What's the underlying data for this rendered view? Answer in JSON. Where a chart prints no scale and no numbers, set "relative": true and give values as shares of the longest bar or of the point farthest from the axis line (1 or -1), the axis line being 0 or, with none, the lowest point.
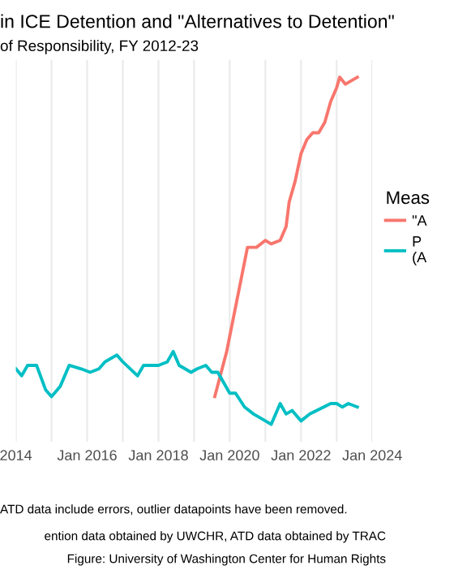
{
  "chart_data": {
    "type": "line",
    "title": "in ICE Detention and \"Alternatives to Detention\"",
    "subtitle": "of Responsibility, FY 2012-23",
    "legend_title": "Meas",
    "relative": true,
    "tick_labels": "x",
    "grid": "x",
    "legend": "right",
    "line_style": "solid",
    "marker": "none",
    "xlim": [
      "2014-01",
      "2024-01"
    ],
    "xticks": [
      {
        "value": "2014-01",
        "label": "2014"
      },
      {
        "value": "2015-01",
        "label": null
      },
      {
        "value": "2016-01",
        "label": "Jan 2016"
      },
      {
        "value": "2017-01",
        "label": null
      },
      {
        "value": "2018-01",
        "label": "Jan 2018"
      },
      {
        "value": "2019-01",
        "label": null
      },
      {
        "value": "2020-01",
        "label": "Jan 2020"
      },
      {
        "value": "2021-01",
        "label": null
      },
      {
        "value": "2022-01",
        "label": "Jan 2022"
      },
      {
        "value": "2023-01",
        "label": null
      },
      {
        "value": "2024-01",
        "label": "Jan 2024"
      }
    ],
    "series": [
      {
        "name": "\"A",
        "color": "#f8766d",
        "x": [
          "2019-08",
          "2019-12",
          "2020-07",
          "2020-10",
          "2021-01",
          "2021-03",
          "2021-06",
          "2021-08",
          "2021-09",
          "2021-11",
          "2022-01",
          "2022-03",
          "2022-05",
          "2022-07",
          "2022-09",
          "2022-11",
          "2023-01",
          "2023-02",
          "2023-04",
          "2023-06",
          "2023-08"
        ],
        "values": [
          0.08,
          0.21,
          0.51,
          0.51,
          0.53,
          0.52,
          0.53,
          0.57,
          0.64,
          0.7,
          0.78,
          0.82,
          0.84,
          0.84,
          0.87,
          0.93,
          0.97,
          1.0,
          0.98,
          0.99,
          1.0
        ]
      },
      {
        "name": "P\n(A",
        "color": "#00bfc4",
        "x": [
          "2014-01",
          "2014-03",
          "2014-05",
          "2014-08",
          "2014-11",
          "2015-01",
          "2015-04",
          "2015-07",
          "2015-11",
          "2016-02",
          "2016-05",
          "2016-07",
          "2016-11",
          "2017-01",
          "2017-06",
          "2017-08",
          "2018-01",
          "2018-04",
          "2018-06",
          "2018-08",
          "2018-12",
          "2019-02",
          "2019-05",
          "2019-07",
          "2019-09",
          "2020-01",
          "2020-03",
          "2020-06",
          "2020-09",
          "2021-01",
          "2021-03",
          "2021-06",
          "2021-08",
          "2021-10",
          "2022-01",
          "2022-04",
          "2022-11",
          "2023-01",
          "2023-03",
          "2023-05",
          "2023-08"
        ],
        "values": [
          0.16,
          0.14,
          0.17,
          0.17,
          0.1,
          0.08,
          0.11,
          0.17,
          0.16,
          0.15,
          0.16,
          0.18,
          0.2,
          0.18,
          0.14,
          0.17,
          0.17,
          0.18,
          0.21,
          0.17,
          0.15,
          0.16,
          0.17,
          0.15,
          0.15,
          0.09,
          0.09,
          0.05,
          0.03,
          0.01,
          0.0,
          0.06,
          0.03,
          0.04,
          0.01,
          0.03,
          0.06,
          0.06,
          0.05,
          0.06,
          0.05
        ]
      }
    ],
    "annotations": [
      "ATD data include errors, outlier datapoints have been removed.",
      "ention data obtained by UWCHR, ATD data obtained by TRAC",
      "Figure: University of Washington Center for Human Rights"
    ]
  }
}
